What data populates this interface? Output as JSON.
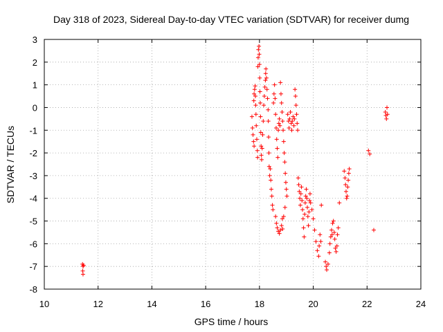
{
  "chart_data": {
    "type": "scatter",
    "title": "Day 318 of 2023, Sidereal Day-to-day VTEC variation (SDTVAR) for receiver dumg",
    "xlabel": "GPS time / hours",
    "ylabel": "SDTVAR / TECUs",
    "xlim": [
      10,
      24
    ],
    "ylim": [
      -8,
      3
    ],
    "xticks": [
      "10",
      "12",
      "14",
      "16",
      "18",
      "20",
      "22",
      "24"
    ],
    "yticks": [
      "3",
      "2",
      "1",
      "0",
      "-1",
      "-2",
      "-3",
      "-4",
      "-5",
      "-6",
      "-7",
      "-8"
    ],
    "grid": true,
    "marker": "+",
    "series_color": "#ff0000",
    "series": [
      {
        "name": "SDTVAR",
        "points": [
          [
            11.42,
            -6.9
          ],
          [
            11.44,
            -7.0
          ],
          [
            11.43,
            -7.2
          ],
          [
            11.44,
            -7.35
          ],
          [
            11.46,
            -6.95
          ],
          [
            17.72,
            -0.4
          ],
          [
            17.74,
            -0.9
          ],
          [
            17.76,
            -1.2
          ],
          [
            17.78,
            -1.5
          ],
          [
            17.8,
            -1.7
          ],
          [
            17.79,
            0.3
          ],
          [
            17.8,
            0.6
          ],
          [
            17.82,
            0.8
          ],
          [
            17.84,
            0.95
          ],
          [
            17.85,
            0.5
          ],
          [
            17.86,
            0.1
          ],
          [
            17.87,
            -0.3
          ],
          [
            17.88,
            -0.8
          ],
          [
            17.9,
            -1.4
          ],
          [
            17.92,
            -1.9
          ],
          [
            17.93,
            -2.2
          ],
          [
            17.94,
            1.8
          ],
          [
            17.95,
            2.2
          ],
          [
            17.96,
            2.55
          ],
          [
            17.98,
            2.7
          ],
          [
            17.99,
            2.35
          ],
          [
            18.0,
            1.9
          ],
          [
            18.01,
            1.3
          ],
          [
            18.02,
            0.7
          ],
          [
            18.03,
            0.2
          ],
          [
            18.04,
            -0.4
          ],
          [
            18.05,
            -1.1
          ],
          [
            18.06,
            -1.7
          ],
          [
            18.07,
            -2.1
          ],
          [
            18.08,
            -2.3
          ],
          [
            18.1,
            -1.8
          ],
          [
            18.12,
            -1.2
          ],
          [
            18.14,
            -0.6
          ],
          [
            18.16,
            0.1
          ],
          [
            18.18,
            0.5
          ],
          [
            18.2,
            0.9
          ],
          [
            18.22,
            1.2
          ],
          [
            18.23,
            1.5
          ],
          [
            18.24,
            1.7
          ],
          [
            18.26,
            1.3
          ],
          [
            18.28,
            0.8
          ],
          [
            18.3,
            0.4
          ],
          [
            18.32,
            -0.1
          ],
          [
            18.33,
            -0.6
          ],
          [
            18.34,
            -1.3
          ],
          [
            18.35,
            -2.0
          ],
          [
            18.36,
            -2.6
          ],
          [
            18.38,
            -3.0
          ],
          [
            18.4,
            -2.7
          ],
          [
            18.42,
            -3.2
          ],
          [
            18.44,
            -3.6
          ],
          [
            18.46,
            -3.9
          ],
          [
            18.48,
            -4.3
          ],
          [
            18.5,
            -4.5
          ],
          [
            18.52,
            0.2
          ],
          [
            18.54,
            0.6
          ],
          [
            18.56,
            1.0
          ],
          [
            18.58,
            0.4
          ],
          [
            18.6,
            -0.3
          ],
          [
            18.62,
            -0.9
          ],
          [
            18.64,
            -1.4
          ],
          [
            18.66,
            -1.8
          ],
          [
            18.68,
            -2.2
          ],
          [
            18.6,
            -4.8
          ],
          [
            18.63,
            -5.1
          ],
          [
            18.66,
            -5.3
          ],
          [
            18.7,
            -5.45
          ],
          [
            18.74,
            -5.55
          ],
          [
            18.78,
            -5.4
          ],
          [
            18.82,
            -5.2
          ],
          [
            18.86,
            -5.35
          ],
          [
            18.7,
            -1.0
          ],
          [
            18.72,
            -0.7
          ],
          [
            18.74,
            -0.5
          ],
          [
            18.76,
            -0.8
          ],
          [
            18.78,
            1.1
          ],
          [
            18.8,
            0.6
          ],
          [
            18.82,
            0.2
          ],
          [
            18.84,
            -0.2
          ],
          [
            18.86,
            -0.6
          ],
          [
            18.88,
            -1.0
          ],
          [
            18.9,
            -1.5
          ],
          [
            18.92,
            -2.0
          ],
          [
            18.94,
            -2.4
          ],
          [
            18.96,
            -2.9
          ],
          [
            18.98,
            -3.3
          ],
          [
            19.0,
            -3.6
          ],
          [
            19.02,
            -3.9
          ],
          [
            18.95,
            -4.4
          ],
          [
            18.9,
            -4.8
          ],
          [
            18.85,
            -4.9
          ],
          [
            19.05,
            -0.3
          ],
          [
            19.08,
            -0.6
          ],
          [
            19.1,
            -0.9
          ],
          [
            19.12,
            -0.5
          ],
          [
            19.15,
            -0.2
          ],
          [
            19.18,
            -0.7
          ],
          [
            19.2,
            -1.0
          ],
          [
            19.22,
            -0.6
          ],
          [
            19.25,
            -0.4
          ],
          [
            19.28,
            -0.8
          ],
          [
            19.3,
            -0.5
          ],
          [
            19.32,
            0.8
          ],
          [
            19.34,
            0.5
          ],
          [
            19.36,
            0.1
          ],
          [
            19.38,
            -0.3
          ],
          [
            19.4,
            -0.7
          ],
          [
            19.42,
            -1.0
          ],
          [
            19.44,
            -3.1
          ],
          [
            19.46,
            -3.4
          ],
          [
            19.48,
            -3.7
          ],
          [
            19.5,
            -4.0
          ],
          [
            19.52,
            -4.3
          ],
          [
            19.54,
            -3.8
          ],
          [
            19.56,
            -3.5
          ],
          [
            19.58,
            -4.1
          ],
          [
            19.6,
            -4.5
          ],
          [
            19.62,
            -4.9
          ],
          [
            19.64,
            -5.3
          ],
          [
            19.66,
            -5.7
          ],
          [
            19.68,
            -4.7
          ],
          [
            19.7,
            -4.2
          ],
          [
            19.72,
            -3.9
          ],
          [
            19.74,
            -3.6
          ],
          [
            19.76,
            -4.0
          ],
          [
            19.78,
            -4.4
          ],
          [
            19.8,
            -4.8
          ],
          [
            19.82,
            -5.2
          ],
          [
            19.84,
            -4.6
          ],
          [
            19.86,
            -4.1
          ],
          [
            19.88,
            -3.8
          ],
          [
            19.9,
            -4.2
          ],
          [
            19.95,
            -4.5
          ],
          [
            20.0,
            -4.9
          ],
          [
            20.05,
            -5.4
          ],
          [
            20.1,
            -5.9
          ],
          [
            20.15,
            -6.3
          ],
          [
            20.2,
            -6.55
          ],
          [
            20.22,
            -6.1
          ],
          [
            20.25,
            -5.6
          ],
          [
            20.28,
            -5.9
          ],
          [
            20.3,
            -4.3
          ],
          [
            20.45,
            -6.8
          ],
          [
            20.48,
            -7.0
          ],
          [
            20.5,
            -7.15
          ],
          [
            20.55,
            -6.9
          ],
          [
            20.6,
            -6.4
          ],
          [
            20.62,
            -6.0
          ],
          [
            20.65,
            -5.7
          ],
          [
            20.68,
            -5.4
          ],
          [
            20.7,
            -5.6
          ],
          [
            20.72,
            -5.1
          ],
          [
            20.75,
            -5.0
          ],
          [
            20.78,
            -5.5
          ],
          [
            20.8,
            -5.8
          ],
          [
            20.82,
            -6.2
          ],
          [
            20.85,
            -6.35
          ],
          [
            20.88,
            -6.1
          ],
          [
            20.9,
            -5.6
          ],
          [
            20.93,
            -5.3
          ],
          [
            20.97,
            -4.2
          ],
          [
            21.15,
            -2.8
          ],
          [
            21.18,
            -3.1
          ],
          [
            21.2,
            -3.4
          ],
          [
            21.22,
            -3.7
          ],
          [
            21.24,
            -4.0
          ],
          [
            21.26,
            -3.9
          ],
          [
            21.28,
            -3.5
          ],
          [
            21.3,
            -3.2
          ],
          [
            21.32,
            -2.9
          ],
          [
            21.34,
            -2.7
          ],
          [
            22.05,
            -1.9
          ],
          [
            22.1,
            -2.05
          ],
          [
            22.25,
            -5.4
          ],
          [
            22.68,
            -0.2
          ],
          [
            22.7,
            -0.35
          ],
          [
            22.72,
            -0.5
          ],
          [
            22.74,
            0.0
          ],
          [
            22.76,
            -0.3
          ]
        ]
      }
    ]
  }
}
